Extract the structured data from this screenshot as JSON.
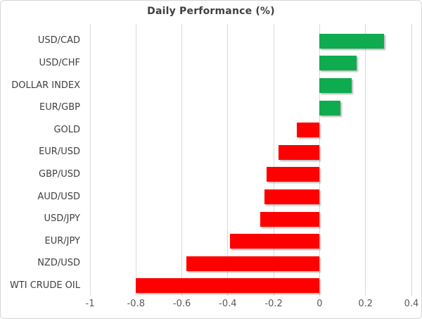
{
  "title": "Daily Performance (%)",
  "colors": {
    "positive_bar": "#0fab4f",
    "negative_bar": "#ff0000",
    "gridline": "#d9d9d9",
    "title_text": "#404040",
    "category_text": "#404040",
    "tick_text": "#595959",
    "frame_border": "#d6d6d6",
    "background": "#ffffff"
  },
  "chart_data": {
    "type": "bar",
    "orientation": "horizontal",
    "title": "Daily Performance (%)",
    "categories": [
      "USD/CAD",
      "USD/CHF",
      "DOLLAR INDEX",
      "EUR/GBP",
      "GOLD",
      "EUR/USD",
      "GBP/USD",
      "AUD/USD",
      "USD/JPY",
      "EUR/JPY",
      "NZD/USD",
      "WTI CRUDE OIL"
    ],
    "values": [
      0.28,
      0.16,
      0.14,
      0.09,
      -0.1,
      -0.18,
      -0.23,
      -0.24,
      -0.26,
      -0.39,
      -0.58,
      -0.8
    ],
    "xlabel": "",
    "ylabel": "",
    "xlim": [
      -1,
      0.4
    ],
    "xticks": [
      -1,
      -0.8,
      -0.6,
      -0.4,
      -0.2,
      0,
      0.2,
      0.4
    ],
    "xtick_labels": [
      "-1",
      "-0.8",
      "-0.6",
      "-0.4",
      "-0.2",
      "0",
      "0.2",
      "0.4"
    ],
    "grid": "vertical-only",
    "legend": false,
    "value_sign_colors": {
      "positive": "green",
      "negative": "red"
    }
  }
}
